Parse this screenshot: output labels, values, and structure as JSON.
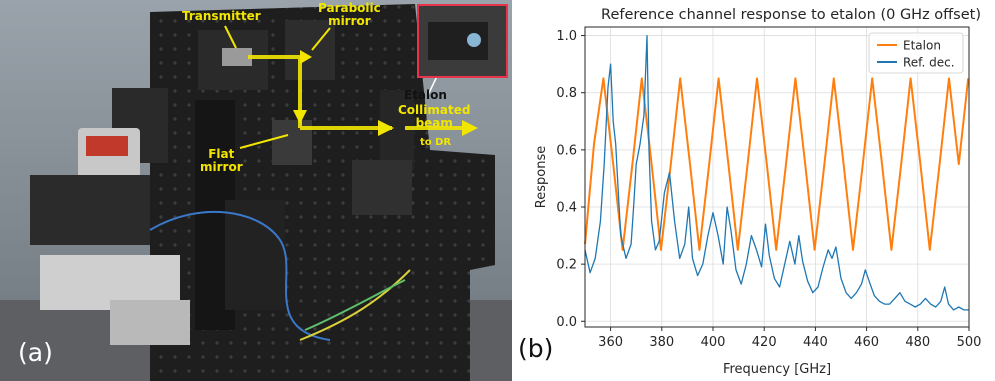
{
  "panel_a": {
    "letter": "(a)",
    "labels": {
      "transmitter": "Transmitter",
      "parabolic_mirror": "Parabolic\nmirror",
      "etalon": "Etalon",
      "collimated_beam": "Collimated\nbeam",
      "to_dr": "to DR",
      "flat_mirror": "Flat\nmirror"
    },
    "colors": {
      "beam": "#f2e600",
      "table": "#1e1e1e",
      "border": "#e8344a"
    }
  },
  "panel_b": {
    "letter": "(b)"
  },
  "chart_data": {
    "type": "line",
    "title": "Reference channel response to etalon (0 GHz offset)",
    "xlabel": "Frequency [GHz]",
    "ylabel": "Response",
    "xlim": [
      350,
      500
    ],
    "ylim": [
      -0.02,
      1.03
    ],
    "xticks": [
      360,
      380,
      400,
      420,
      440,
      460,
      480,
      500
    ],
    "yticks": [
      0.0,
      0.2,
      0.4,
      0.6,
      0.8,
      1.0
    ],
    "grid": true,
    "legend": "top-right",
    "series": [
      {
        "name": "Etalon",
        "color": "#ff7f0e",
        "x": [
          350,
          353.5,
          357.2,
          361,
          364.7,
          368.5,
          372.2,
          376,
          379.7,
          383.5,
          387.2,
          391,
          394.7,
          398.5,
          402.2,
          406,
          409.7,
          413.5,
          417.2,
          421,
          424.7,
          428.5,
          432.2,
          436,
          439.7,
          443.5,
          447.2,
          451,
          454.7,
          458.5,
          462.2,
          466,
          469.7,
          473.5,
          477.2,
          481,
          484.7,
          488.5,
          492.2,
          496,
          499.7
        ],
        "y": [
          0.27,
          0.62,
          0.85,
          0.55,
          0.25,
          0.55,
          0.85,
          0.55,
          0.25,
          0.55,
          0.85,
          0.55,
          0.25,
          0.55,
          0.85,
          0.55,
          0.25,
          0.55,
          0.85,
          0.55,
          0.25,
          0.55,
          0.85,
          0.55,
          0.25,
          0.55,
          0.85,
          0.55,
          0.25,
          0.55,
          0.85,
          0.55,
          0.25,
          0.55,
          0.85,
          0.55,
          0.25,
          0.55,
          0.85,
          0.55,
          0.85
        ]
      },
      {
        "name": "Ref. dec.",
        "color": "#1f77b4",
        "x": [
          350,
          352,
          354,
          356,
          357.5,
          359,
          360,
          361,
          362,
          363,
          364,
          366,
          368,
          369,
          370,
          371.5,
          373,
          374.2,
          375,
          376,
          377.5,
          379,
          381,
          383,
          385,
          387,
          389,
          390.5,
          392,
          394,
          396,
          398,
          400,
          402,
          404,
          405.5,
          407,
          409,
          411,
          413,
          415,
          417,
          419,
          420.5,
          422,
          424,
          426,
          428,
          430,
          432,
          433.5,
          435,
          437,
          439,
          441,
          443,
          445,
          446.5,
          448,
          450,
          452,
          454,
          456,
          458,
          459.5,
          461,
          463,
          465,
          467,
          469,
          471,
          473,
          475,
          477,
          479,
          481,
          483,
          485,
          487,
          489,
          490.5,
          492,
          494,
          496,
          498,
          500
        ],
        "y": [
          0.25,
          0.17,
          0.22,
          0.35,
          0.55,
          0.82,
          0.9,
          0.7,
          0.62,
          0.45,
          0.3,
          0.22,
          0.27,
          0.4,
          0.55,
          0.62,
          0.72,
          1.0,
          0.6,
          0.35,
          0.25,
          0.28,
          0.45,
          0.52,
          0.35,
          0.22,
          0.27,
          0.4,
          0.22,
          0.16,
          0.2,
          0.3,
          0.38,
          0.3,
          0.2,
          0.4,
          0.32,
          0.18,
          0.13,
          0.2,
          0.3,
          0.25,
          0.19,
          0.34,
          0.23,
          0.15,
          0.12,
          0.2,
          0.28,
          0.2,
          0.3,
          0.21,
          0.14,
          0.1,
          0.12,
          0.19,
          0.25,
          0.22,
          0.26,
          0.15,
          0.1,
          0.08,
          0.1,
          0.13,
          0.18,
          0.14,
          0.09,
          0.07,
          0.06,
          0.06,
          0.08,
          0.1,
          0.07,
          0.06,
          0.05,
          0.06,
          0.08,
          0.06,
          0.05,
          0.07,
          0.12,
          0.06,
          0.04,
          0.05,
          0.04,
          0.04
        ]
      }
    ]
  }
}
